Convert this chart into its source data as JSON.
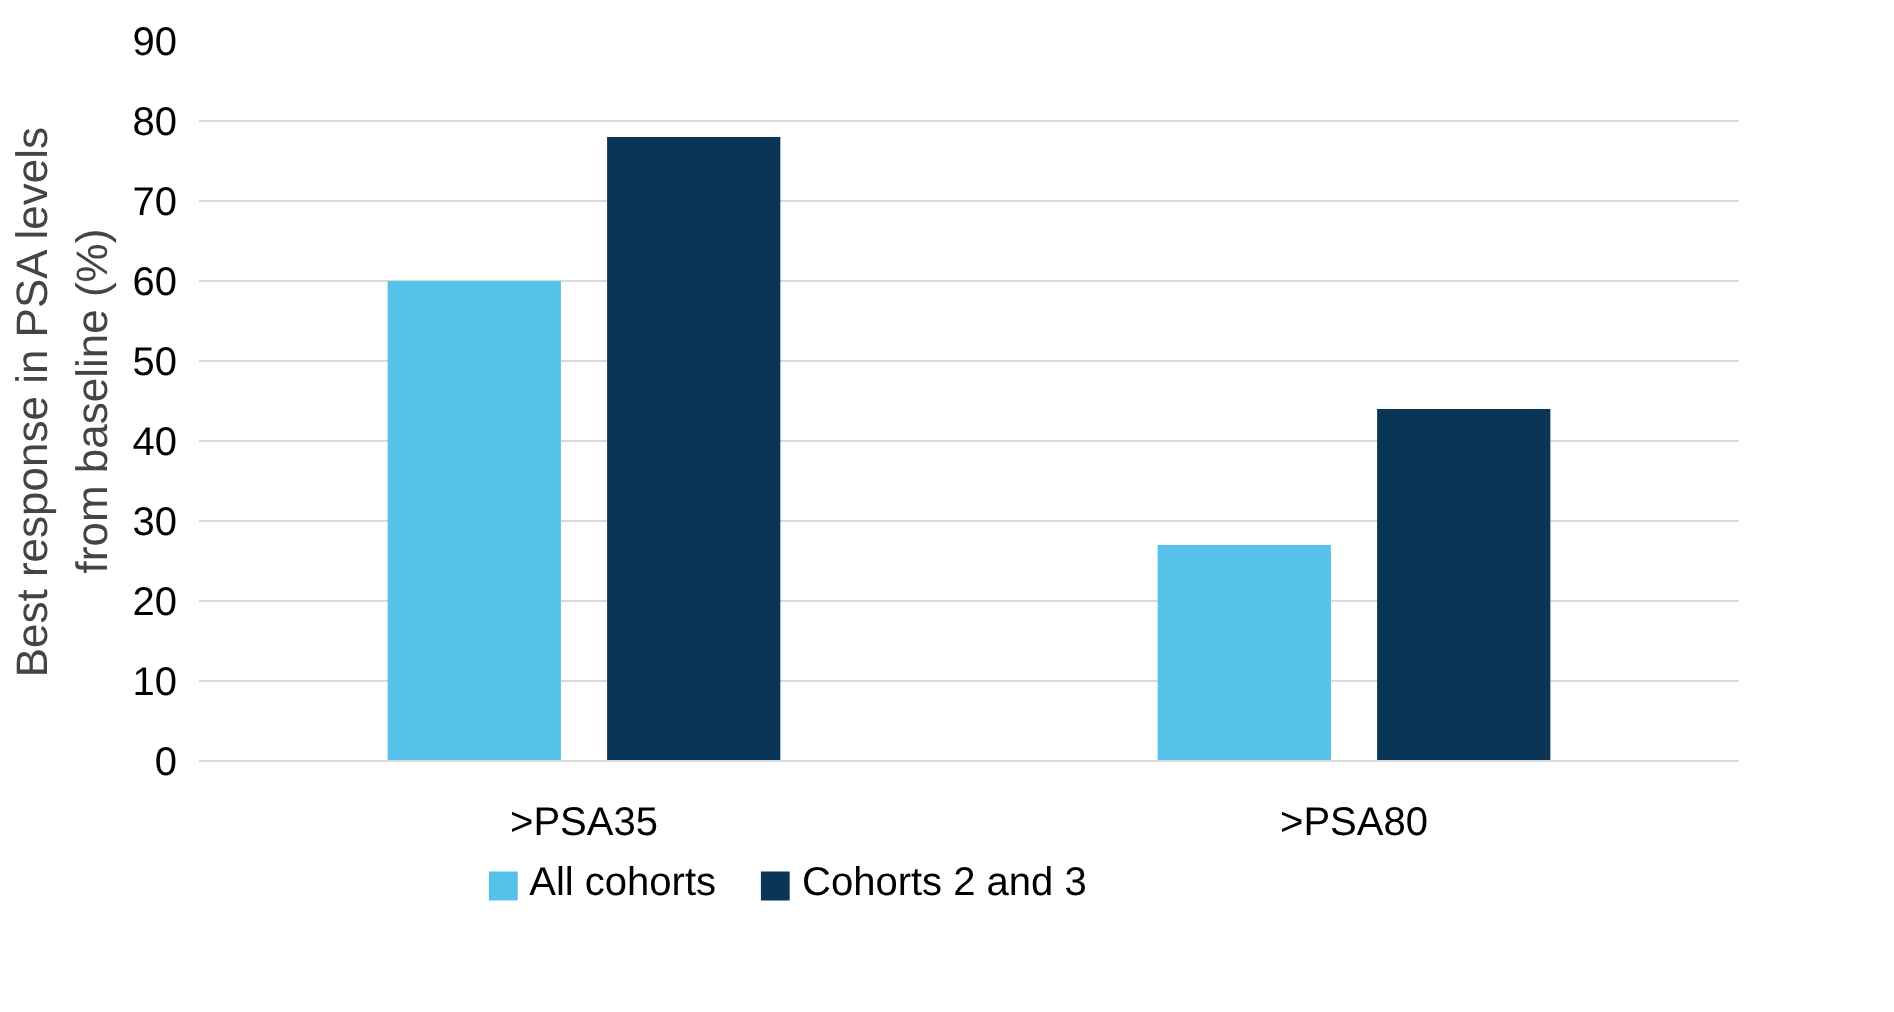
{
  "chart_data": {
    "type": "bar",
    "ylabel": "Best response in PSA levels\nfrom baseline (%)",
    "categories": [
      ">PSA35",
      ">PSA80"
    ],
    "series": [
      {
        "name": "All cohorts",
        "color": "#56c2ea",
        "values": [
          60,
          27
        ]
      },
      {
        "name": "Cohorts 2 and 3",
        "color": "#0a3556",
        "values": [
          78,
          44
        ]
      }
    ],
    "ylim": [
      0,
      90
    ],
    "yticks": [
      0,
      10,
      20,
      30,
      40,
      50,
      60,
      70,
      80,
      90
    ],
    "grid": "y",
    "legend": "bottom"
  }
}
